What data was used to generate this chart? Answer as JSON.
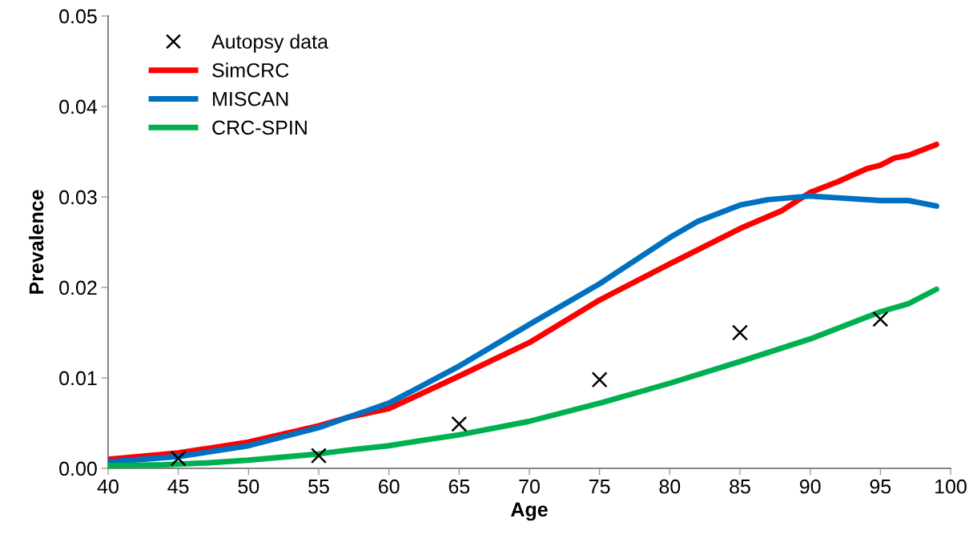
{
  "chart_data": {
    "type": "line",
    "xlabel": "Age",
    "ylabel": "Prevalence",
    "xlim": [
      40,
      100
    ],
    "xticks": [
      40,
      45,
      50,
      55,
      60,
      65,
      70,
      75,
      80,
      85,
      90,
      95,
      100
    ],
    "ylim": [
      0,
      0.05
    ],
    "yticks": [
      {
        "value": 0,
        "label": "0.00"
      },
      {
        "value": 0.01,
        "label": "0.01"
      },
      {
        "value": 0.02,
        "label": "0.02"
      },
      {
        "value": 0.03,
        "label": "0.03"
      },
      {
        "value": 0.04,
        "label": "0.04"
      },
      {
        "value": 0.05,
        "label": "0.05"
      }
    ],
    "grid": false,
    "legend": "top left",
    "series": [
      {
        "name": "Autopsy data",
        "type": "scatter",
        "marker": "cross",
        "color": "#000000",
        "x": [
          45,
          55,
          65,
          75,
          85,
          95
        ],
        "values": [
          0.0011,
          0.0014,
          0.0049,
          0.0098,
          0.015,
          0.0165
        ]
      },
      {
        "name": "SimCRC",
        "color": "#ff0000",
        "x": [
          40,
          45,
          50,
          55,
          57,
          60,
          65,
          70,
          75,
          80,
          85,
          88,
          90,
          92,
          94,
          95,
          96,
          97,
          99
        ],
        "values": [
          0.001,
          0.0017,
          0.0029,
          0.0047,
          0.0056,
          0.0066,
          0.0102,
          0.0139,
          0.0186,
          0.0226,
          0.0265,
          0.0285,
          0.0305,
          0.0317,
          0.0331,
          0.0335,
          0.0343,
          0.0346,
          0.0358
        ]
      },
      {
        "name": "MISCAN",
        "color": "#0070c0",
        "x": [
          40,
          45,
          50,
          55,
          57,
          60,
          65,
          70,
          75,
          80,
          82,
          85,
          87,
          90,
          92,
          95,
          97,
          99
        ],
        "values": [
          0.0007,
          0.0013,
          0.0025,
          0.0045,
          0.0056,
          0.0072,
          0.0113,
          0.0159,
          0.0204,
          0.0255,
          0.0273,
          0.0291,
          0.0297,
          0.0301,
          0.0299,
          0.0296,
          0.0296,
          0.029
        ]
      },
      {
        "name": "CRC-SPIN",
        "color": "#00b050",
        "x": [
          40,
          44,
          47,
          50,
          55,
          57,
          60,
          62,
          65,
          70,
          75,
          80,
          85,
          90,
          95,
          97,
          99
        ],
        "values": [
          0.0003,
          0.0004,
          0.0006,
          0.0009,
          0.0016,
          0.002,
          0.0025,
          0.003,
          0.0037,
          0.0052,
          0.0072,
          0.0094,
          0.0118,
          0.0143,
          0.0173,
          0.0182,
          0.0198
        ]
      }
    ]
  }
}
